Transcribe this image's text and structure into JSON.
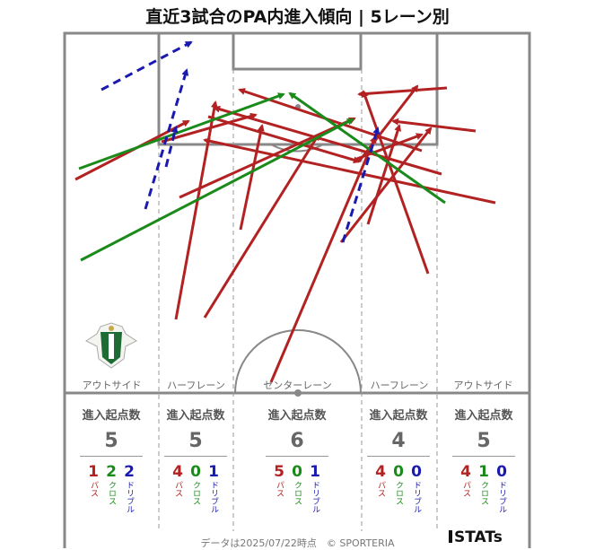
{
  "title": "直近3試合のPA内進入傾向 | 5レーン別",
  "lanes": [
    {
      "label": "アウトサイド",
      "header": "進入起点数",
      "total": "5",
      "pass": "1",
      "cross": "2",
      "dribble": "2"
    },
    {
      "label": "ハーフレーン",
      "header": "進入起点数",
      "total": "5",
      "pass": "4",
      "cross": "0",
      "dribble": "1"
    },
    {
      "label": "センターレーン",
      "header": "進入起点数",
      "total": "6",
      "pass": "5",
      "cross": "0",
      "dribble": "1"
    },
    {
      "label": "ハーフレーン",
      "header": "進入起点数",
      "total": "4",
      "pass": "4",
      "cross": "0",
      "dribble": "0"
    },
    {
      "label": "アウトサイド",
      "header": "進入起点数",
      "total": "5",
      "pass": "4",
      "cross": "1",
      "dribble": "0"
    }
  ],
  "legend": {
    "pass": "パス",
    "cross": "クロス",
    "dribble": "ドリブル"
  },
  "colors": {
    "pass": "#b22222",
    "cross": "#1a8a1a",
    "dribble": "#1a1ab0",
    "pitch_line": "#888888"
  },
  "footer": "データは2025/07/22時点　© SPORTERIA",
  "brand": "STATs",
  "logo_icon": "team-crest-icon"
}
